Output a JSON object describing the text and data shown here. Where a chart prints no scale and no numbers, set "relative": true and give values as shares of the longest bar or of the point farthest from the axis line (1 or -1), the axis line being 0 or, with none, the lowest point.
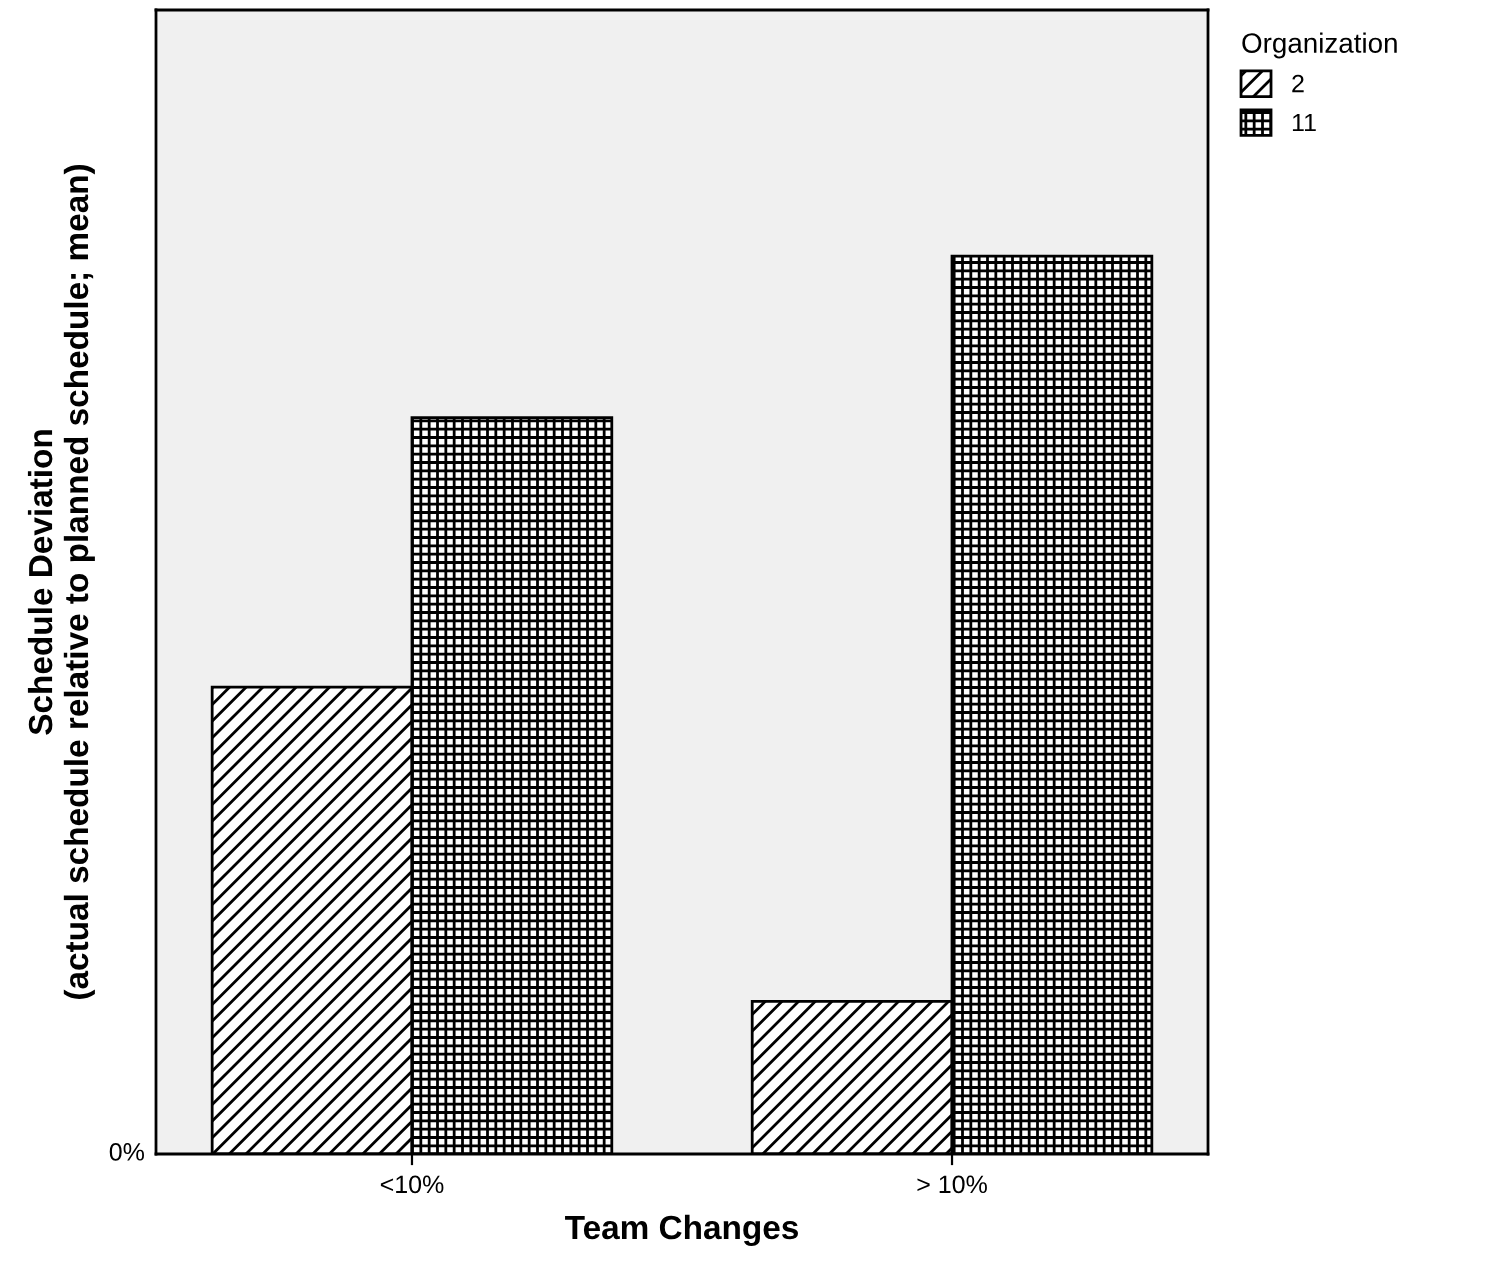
{
  "chart_data": {
    "type": "bar",
    "relative": true,
    "xlabel": "Team Changes",
    "ylabel": "Schedule Deviation\n(actual schedule relative to planned schedule; mean)",
    "legend_title": "Organization",
    "legend": "top right",
    "categories": [
      "<10%",
      "> 10%"
    ],
    "series": [
      {
        "name": "2",
        "color": "#000000",
        "values": [
          0.52,
          0.17
        ]
      },
      {
        "name": "11",
        "color": "#000000",
        "values": [
          0.82,
          1.0
        ]
      }
    ],
    "annotations": [
      "0%"
    ]
  }
}
